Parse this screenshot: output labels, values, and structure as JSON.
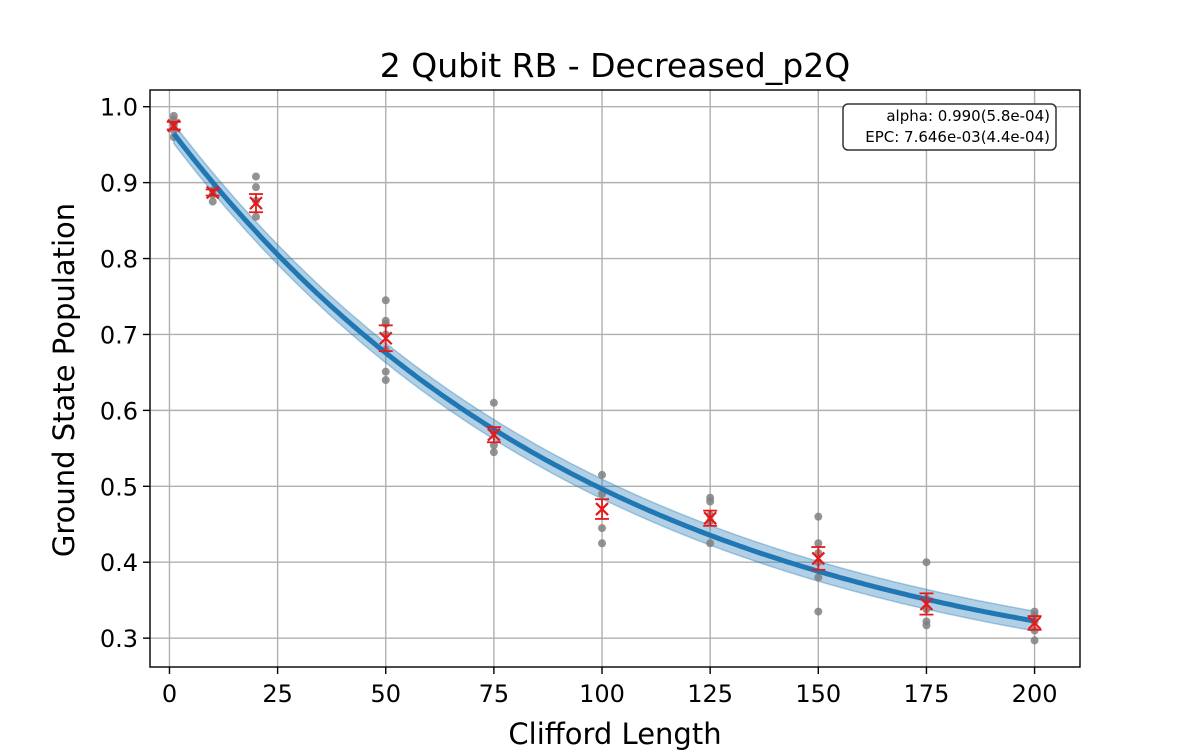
{
  "chart_data": {
    "type": "scatter",
    "title": "2 Qubit RB - Decreased_p2Q",
    "xlabel": "Clifford Length",
    "ylabel": "Ground State Population",
    "xlim": [
      -4.5,
      210.5
    ],
    "ylim": [
      0.262,
      1.022
    ],
    "xticks": [
      0,
      25,
      50,
      75,
      100,
      125,
      150,
      175,
      200
    ],
    "yticks": [
      0.3,
      0.4,
      0.5,
      0.6,
      0.7,
      0.8,
      0.9,
      1.0
    ],
    "xtick_labels": [
      "0",
      "25",
      "50",
      "75",
      "100",
      "125",
      "150",
      "175",
      "200"
    ],
    "ytick_labels": [
      "0.3",
      "0.4",
      "0.5",
      "0.6",
      "0.7",
      "0.8",
      "0.9",
      "1.0"
    ],
    "grid": true,
    "colors": {
      "fit": "#1f77b4",
      "band": "#1f77b4",
      "raw_points": "#808080",
      "means": "#e41a1c",
      "grid": "#b0b0b0"
    },
    "annotation": {
      "lines": [
        "alpha: 0.990(5.8e-04)",
        "EPC: 7.646e-03(4.4e-04)"
      ],
      "placement": "top-right"
    },
    "fit": {
      "model": "A*alpha^x + B",
      "A": 0.75,
      "alpha": 0.99,
      "B": 0.222,
      "band_halfwidth": 0.013
    },
    "x": [
      1,
      10,
      20,
      50,
      75,
      100,
      125,
      150,
      175,
      200
    ],
    "mean": [
      0.975,
      0.887,
      0.873,
      0.695,
      0.568,
      0.47,
      0.458,
      0.405,
      0.345,
      0.32
    ],
    "err": [
      0.005,
      0.004,
      0.012,
      0.017,
      0.01,
      0.013,
      0.01,
      0.015,
      0.014,
      0.009
    ],
    "raw": [
      [
        0.988,
        0.983,
        0.979,
        0.975,
        0.969,
        0.96
      ],
      [
        0.89,
        0.884,
        0.875
      ],
      [
        0.908,
        0.894,
        0.876,
        0.855
      ],
      [
        0.745,
        0.718,
        0.714,
        0.7,
        0.68,
        0.651,
        0.64
      ],
      [
        0.61,
        0.572,
        0.554,
        0.545
      ],
      [
        0.515,
        0.49,
        0.445,
        0.425
      ],
      [
        0.485,
        0.48,
        0.462,
        0.454,
        0.425
      ],
      [
        0.46,
        0.425,
        0.412,
        0.4,
        0.38,
        0.335
      ],
      [
        0.4,
        0.352,
        0.338,
        0.322,
        0.317
      ],
      [
        0.335,
        0.33,
        0.322,
        0.31,
        0.297
      ]
    ]
  }
}
